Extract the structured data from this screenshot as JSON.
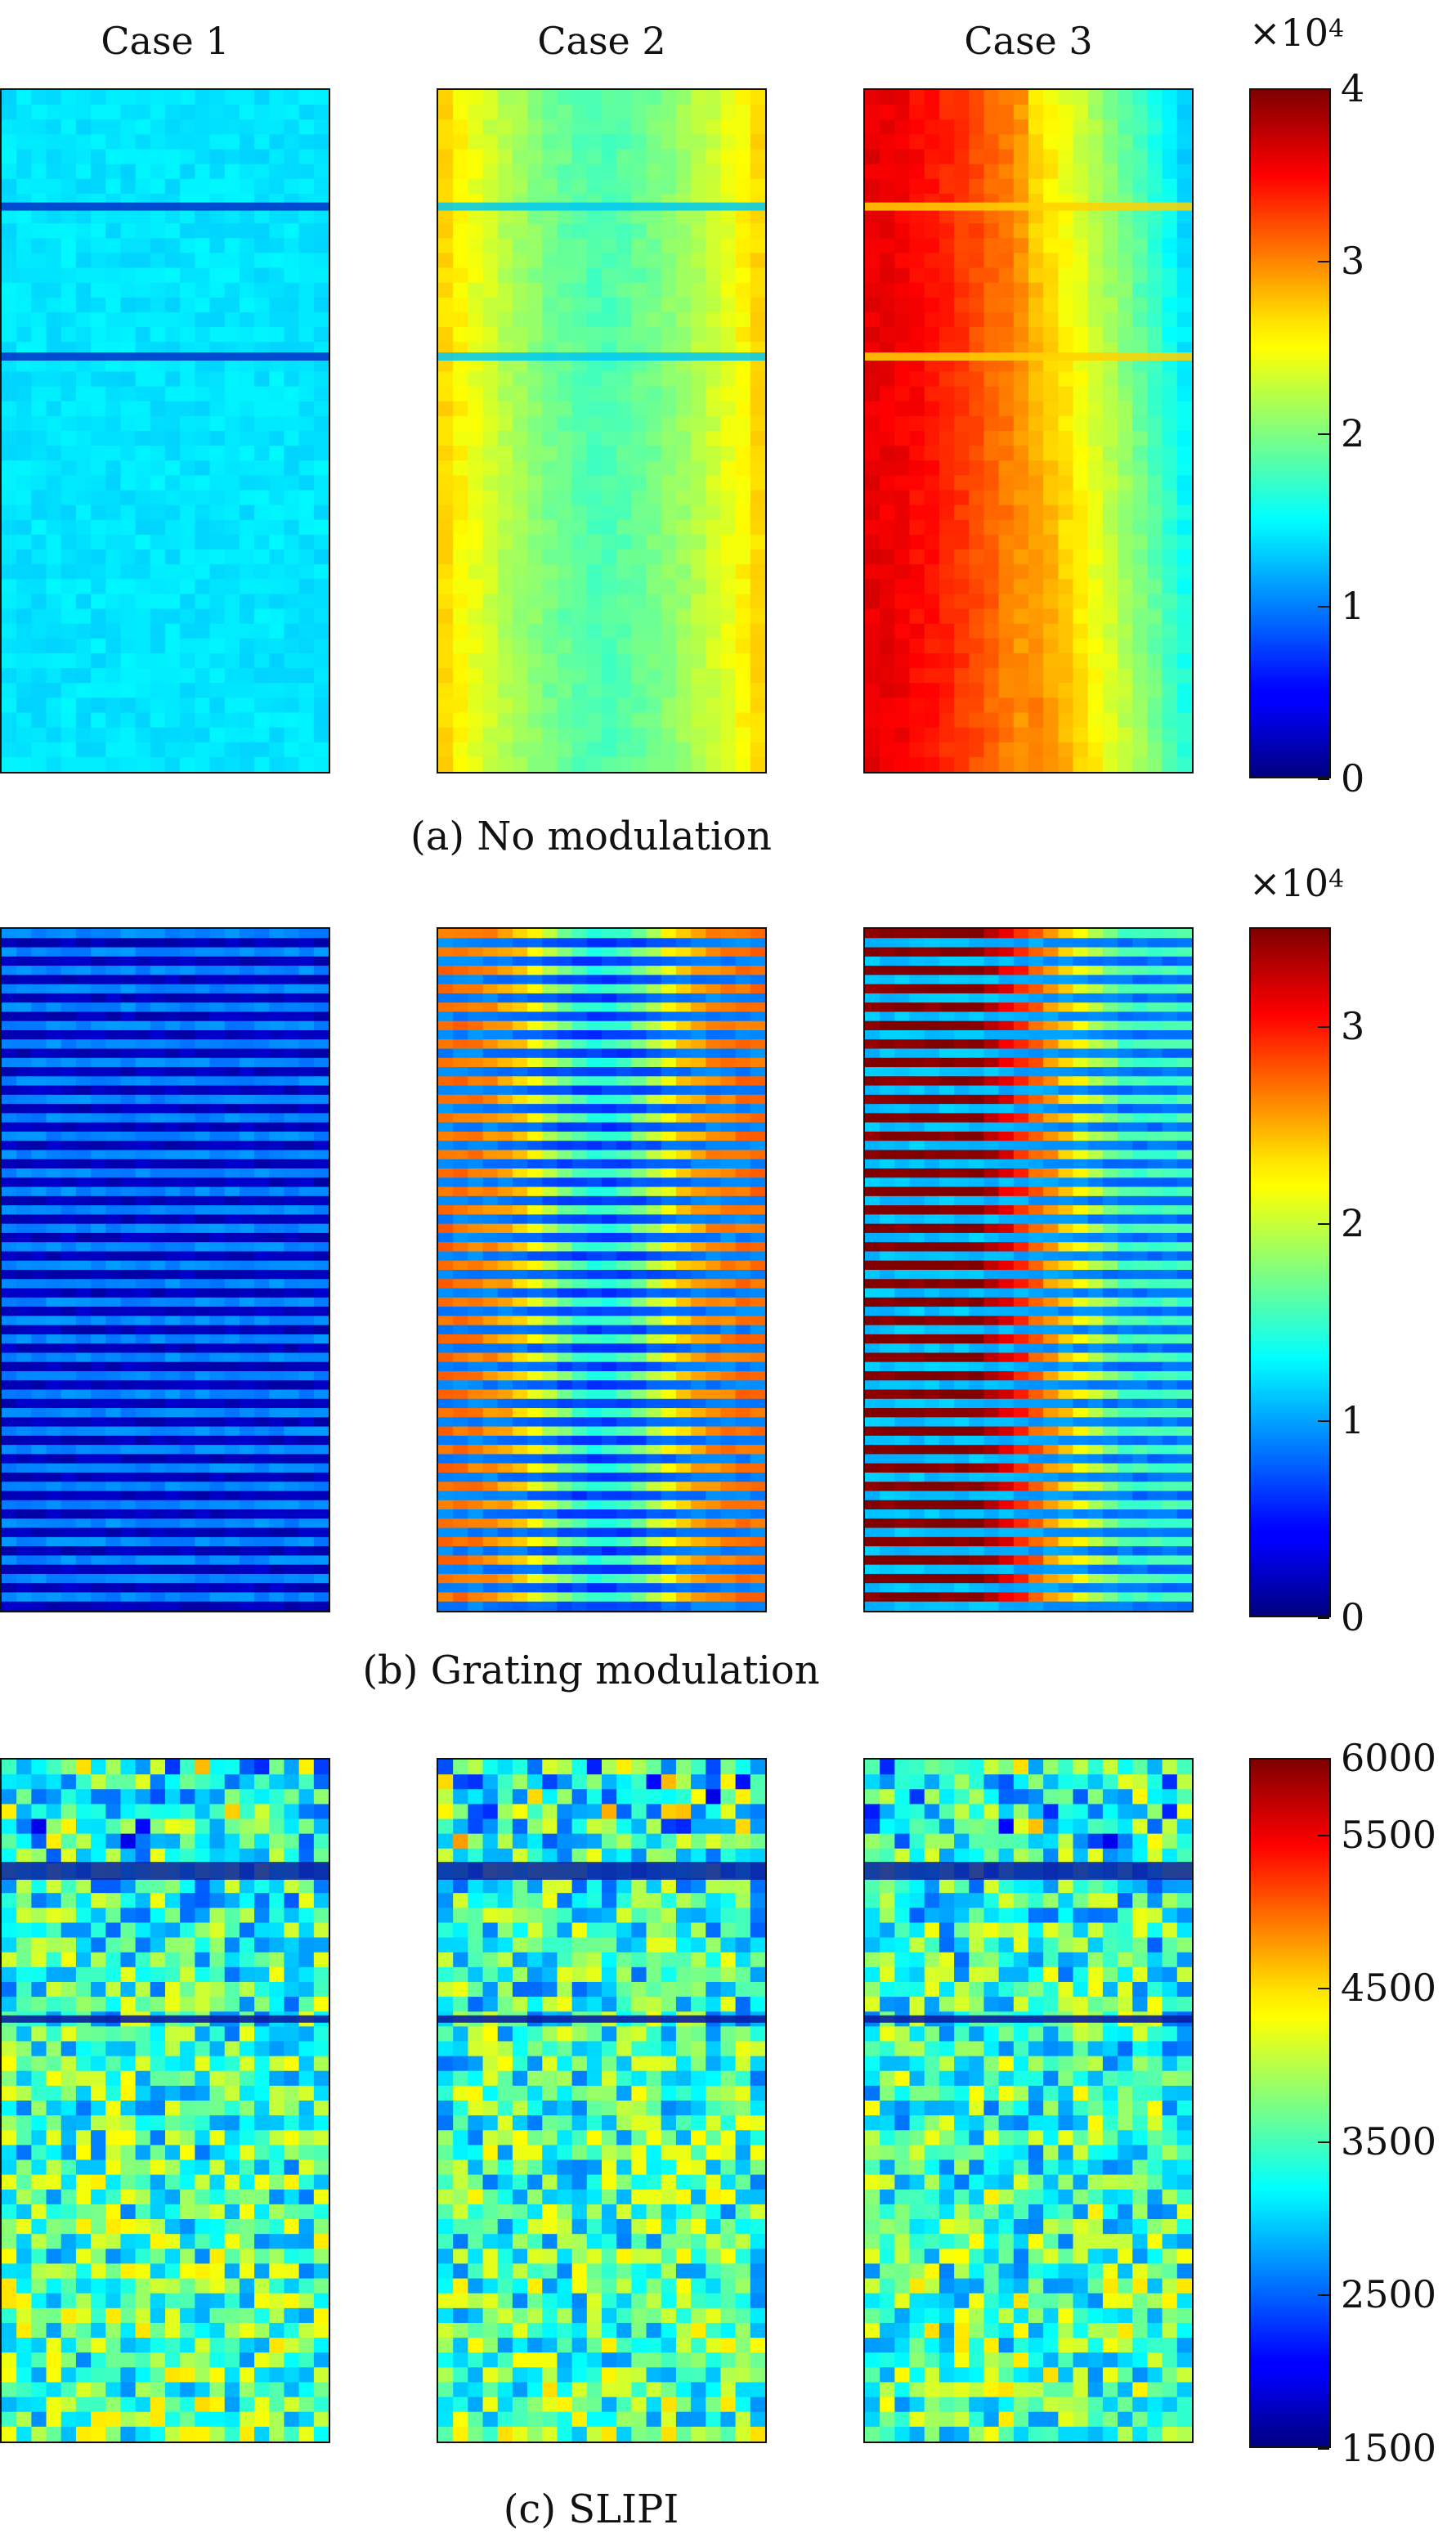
{
  "columns": [
    "Case 1",
    "Case 2",
    "Case 3"
  ],
  "chart_data": [
    {
      "type": "heatmap",
      "caption": "(a) No modulation",
      "colormap": "jet",
      "colorbar": {
        "min": 0,
        "max": 40000,
        "ticks": [
          "0",
          "1",
          "2",
          "3",
          "4"
        ],
        "multiplier_base": "×10",
        "multiplier_exp": "4"
      },
      "panels": [
        {
          "case": "Case 1",
          "mean_intensity": 14000,
          "pattern": "uniform with two dark horizontal lines"
        },
        {
          "case": "Case 2",
          "mean_intensity": 25000,
          "pattern": "brighter near left and right edges, two horizontal lines"
        },
        {
          "case": "Case 3",
          "mean_intensity": 33000,
          "pattern": "bright on left decaying to right, two horizontal lines"
        }
      ]
    },
    {
      "type": "heatmap",
      "caption": "(b) Grating modulation",
      "colormap": "jet",
      "colorbar": {
        "min": 0,
        "max": 35000,
        "ticks": [
          "0",
          "1",
          "2",
          "3"
        ],
        "multiplier_base": "×10",
        "multiplier_exp": "4"
      },
      "panels": [
        {
          "case": "Case 1",
          "mean_intensity": 5000,
          "pattern": "horizontal stripes"
        },
        {
          "case": "Case 2",
          "mean_intensity": 20000,
          "pattern": "horizontal stripes, darker center"
        },
        {
          "case": "Case 3",
          "mean_intensity": 26000,
          "pattern": "horizontal stripes, bright left decaying right"
        }
      ]
    },
    {
      "type": "heatmap",
      "caption": "(c) SLIPI",
      "colormap": "jet",
      "colorbar": {
        "min": 1500,
        "max": 6000,
        "ticks": [
          "1500",
          "2500",
          "3500",
          "4500",
          "5500",
          "6000"
        ]
      },
      "panels": [
        {
          "case": "Case 1",
          "mean_intensity": 3600,
          "pattern": "noisy, two dark horizontal lines"
        },
        {
          "case": "Case 2",
          "mean_intensity": 3500,
          "pattern": "noisy, two dark horizontal lines"
        },
        {
          "case": "Case 3",
          "mean_intensity": 3500,
          "pattern": "noisy, two dark horizontal lines"
        }
      ]
    }
  ]
}
